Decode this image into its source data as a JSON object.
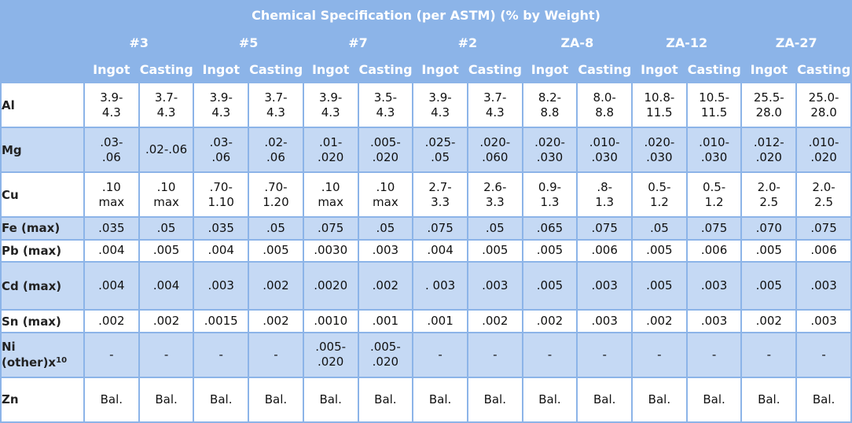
{
  "title": "Chemical Specification (per ASTM) (% by Weight)",
  "alloys": [
    "#3",
    "#5",
    "#7",
    "#2",
    "ZA-8",
    "ZA-12",
    "ZA-27"
  ],
  "form_labels": {
    "ingot": "Ingot",
    "casting": "Casting"
  },
  "colors": {
    "header_bg": "#8cb4e8",
    "header_text": "#ffffff",
    "row_light": "#ffffff",
    "row_dark": "#c5d9f4"
  },
  "rows": [
    {
      "label": "Al",
      "shade": "light",
      "values": [
        [
          "3.9-",
          "4.3"
        ],
        [
          "3.7-",
          "4.3"
        ],
        [
          "3.9-",
          "4.3"
        ],
        [
          "3.7-",
          "4.3"
        ],
        [
          "3.9-",
          "4.3"
        ],
        [
          "3.5-",
          "4.3"
        ],
        [
          "3.9-",
          "4.3"
        ],
        [
          "3.7-",
          "4.3"
        ],
        [
          "8.2-",
          "8.8"
        ],
        [
          "8.0-",
          "8.8"
        ],
        [
          "10.8-",
          "11.5"
        ],
        [
          "10.5-",
          "11.5"
        ],
        [
          "25.5-",
          "28.0"
        ],
        [
          "25.0-",
          "28.0"
        ]
      ]
    },
    {
      "label": "Mg",
      "shade": "dark",
      "values": [
        [
          ".03-",
          ".06"
        ],
        [
          ".02-.06"
        ],
        [
          ".03-",
          ".06"
        ],
        [
          ".02-",
          ".06"
        ],
        [
          ".01-",
          ".020"
        ],
        [
          ".005-",
          ".020"
        ],
        [
          ".025-",
          ".05"
        ],
        [
          ".020-",
          ".060"
        ],
        [
          ".020-",
          ".030"
        ],
        [
          ".010-",
          ".030"
        ],
        [
          ".020-",
          ".030"
        ],
        [
          ".010-",
          ".030"
        ],
        [
          ".012-",
          ".020"
        ],
        [
          ".010-",
          ".020"
        ]
      ]
    },
    {
      "label": "Cu",
      "shade": "light",
      "values": [
        [
          ".10",
          "max"
        ],
        [
          ".10",
          "max"
        ],
        [
          ".70-",
          "1.10"
        ],
        [
          ".70-",
          "1.20"
        ],
        [
          ".10",
          "max"
        ],
        [
          ".10",
          "max"
        ],
        [
          "2.7-",
          "3.3"
        ],
        [
          "2.6-",
          "3.3"
        ],
        [
          "0.9-",
          "1.3"
        ],
        [
          ".8-",
          "1.3"
        ],
        [
          "0.5-",
          "1.2"
        ],
        [
          "0.5-",
          "1.2"
        ],
        [
          "2.0-",
          "2.5"
        ],
        [
          "2.0-",
          "2.5"
        ]
      ]
    },
    {
      "label": "Fe (max)",
      "shade": "dark",
      "values": [
        [
          ".035"
        ],
        [
          ".05"
        ],
        [
          ".035"
        ],
        [
          ".05"
        ],
        [
          ".075"
        ],
        [
          ".05"
        ],
        [
          ".075"
        ],
        [
          ".05"
        ],
        [
          ".065"
        ],
        [
          ".075"
        ],
        [
          ".05"
        ],
        [
          ".075"
        ],
        [
          ".070"
        ],
        [
          ".075"
        ]
      ]
    },
    {
      "label": "Pb (max)",
      "shade": "light",
      "values": [
        [
          ".004"
        ],
        [
          ".005"
        ],
        [
          ".004"
        ],
        [
          ".005"
        ],
        [
          ".0030"
        ],
        [
          ".003"
        ],
        [
          ".004"
        ],
        [
          ".005"
        ],
        [
          ".005"
        ],
        [
          ".006"
        ],
        [
          ".005"
        ],
        [
          ".006"
        ],
        [
          ".005"
        ],
        [
          ".006"
        ]
      ]
    },
    {
      "label": "Cd (max)",
      "shade": "dark",
      "values": [
        [
          ".004"
        ],
        [
          ".004"
        ],
        [
          ".003"
        ],
        [
          ".002"
        ],
        [
          ".0020"
        ],
        [
          ".002"
        ],
        [
          ". 003"
        ],
        [
          ".003"
        ],
        [
          ".005"
        ],
        [
          ".003"
        ],
        [
          ".005"
        ],
        [
          ".003"
        ],
        [
          ".005"
        ],
        [
          ".003"
        ]
      ]
    },
    {
      "label": "Sn (max)",
      "shade": "light",
      "values": [
        [
          ".002"
        ],
        [
          ".002"
        ],
        [
          ".0015"
        ],
        [
          ".002"
        ],
        [
          ".0010"
        ],
        [
          ".001"
        ],
        [
          ".001"
        ],
        [
          ".002"
        ],
        [
          ".002"
        ],
        [
          ".003"
        ],
        [
          ".002"
        ],
        [
          ".003"
        ],
        [
          ".002"
        ],
        [
          ".003"
        ]
      ]
    },
    {
      "label": "Ni",
      "label2": "(other)x",
      "sup": "10",
      "shade": "dark",
      "values": [
        [
          "-"
        ],
        [
          "-"
        ],
        [
          "-"
        ],
        [
          "-"
        ],
        [
          ".005-",
          ".020"
        ],
        [
          ".005-",
          ".020"
        ],
        [
          "-"
        ],
        [
          "-"
        ],
        [
          "-"
        ],
        [
          "-"
        ],
        [
          "-"
        ],
        [
          "-"
        ],
        [
          "-"
        ],
        [
          "-"
        ]
      ]
    },
    {
      "label": "Zn",
      "shade": "light",
      "values": [
        [
          "Bal."
        ],
        [
          "Bal."
        ],
        [
          "Bal."
        ],
        [
          "Bal."
        ],
        [
          "Bal."
        ],
        [
          "Bal."
        ],
        [
          "Bal."
        ],
        [
          "Bal."
        ],
        [
          "Bal."
        ],
        [
          "Bal."
        ],
        [
          "Bal."
        ],
        [
          "Bal."
        ],
        [
          "Bal."
        ],
        [
          "Bal."
        ]
      ]
    }
  ]
}
